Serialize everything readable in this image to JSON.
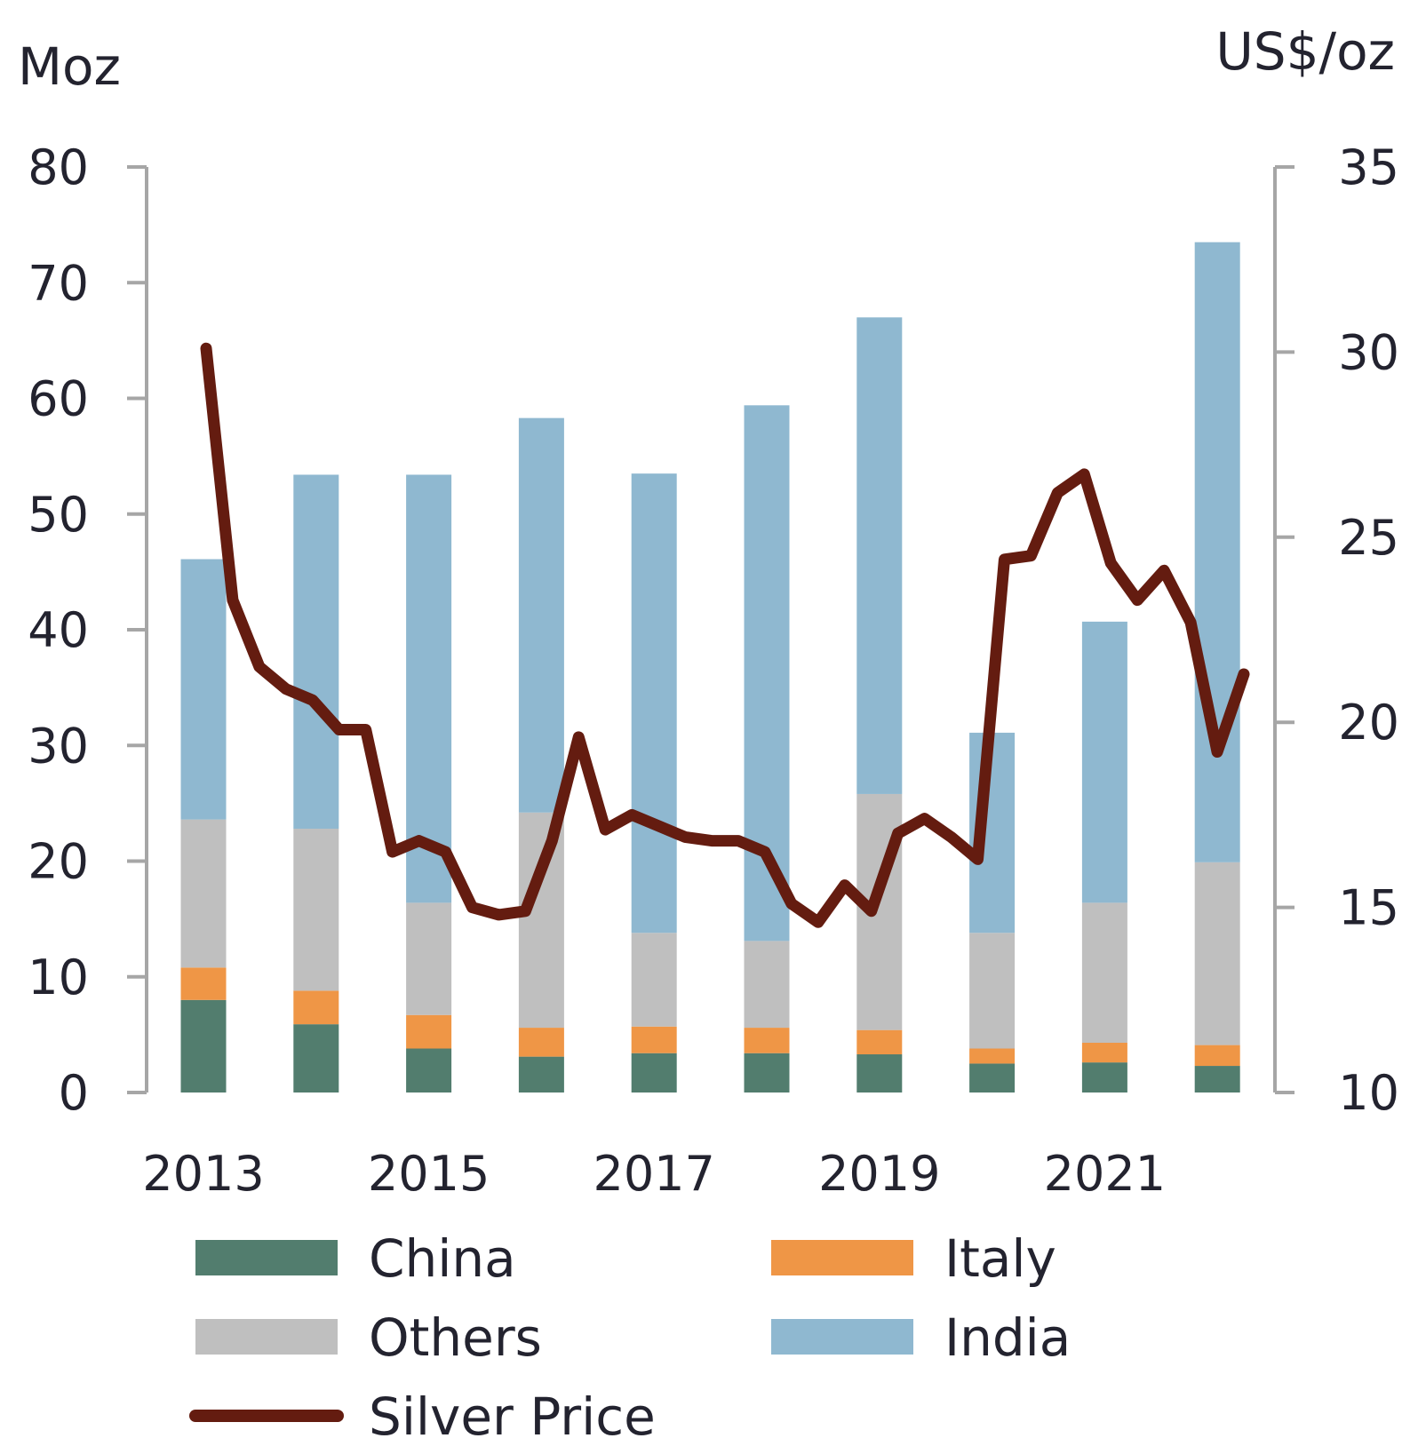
{
  "chart_data": {
    "type": "bar",
    "stacked": true,
    "categories": [
      "2013",
      "2014",
      "2015",
      "2016",
      "2017",
      "2018",
      "2019",
      "2020",
      "2021",
      "2022"
    ],
    "x_tick_labels": [
      "2013",
      "2015",
      "2017",
      "2019",
      "2021"
    ],
    "ylabel_left": "Moz",
    "ylabel_right": "US$/oz",
    "ylim_left": [
      0,
      80
    ],
    "yticks_left": [
      0,
      10,
      20,
      30,
      40,
      50,
      60,
      70,
      80
    ],
    "ylim_right": [
      10,
      35
    ],
    "yticks_right": [
      10,
      15,
      20,
      25,
      30,
      35
    ],
    "grid": false,
    "legend_placement": "bottom",
    "series": [
      {
        "name": "China",
        "color": "#527d6e",
        "values": [
          8.0,
          5.9,
          3.8,
          3.1,
          3.4,
          3.4,
          3.3,
          2.5,
          2.6,
          2.3
        ]
      },
      {
        "name": "Italy",
        "color": "#ef9646",
        "values": [
          2.8,
          2.9,
          2.9,
          2.5,
          2.3,
          2.2,
          2.1,
          1.3,
          1.7,
          1.8
        ]
      },
      {
        "name": "Others",
        "color": "#bfbfbf",
        "values": [
          12.8,
          14.0,
          9.7,
          18.6,
          8.1,
          7.5,
          20.4,
          10.0,
          12.1,
          15.8
        ]
      },
      {
        "name": "India",
        "color": "#8fb8d0",
        "values": [
          22.5,
          30.6,
          37.0,
          34.1,
          39.7,
          46.3,
          41.2,
          17.3,
          24.3,
          53.6
        ]
      }
    ],
    "line_series": {
      "name": "Silver Price",
      "color": "#641c10",
      "axis": "right",
      "x": [
        "2013Q1",
        "2013Q2",
        "2013Q3",
        "2013Q4",
        "2014Q1",
        "2014Q2",
        "2014Q3",
        "2014Q4",
        "2015Q1",
        "2015Q2",
        "2015Q3",
        "2015Q4",
        "2016Q1",
        "2016Q2",
        "2016Q3",
        "2016Q4",
        "2017Q1",
        "2017Q2",
        "2017Q3",
        "2017Q4",
        "2018Q1",
        "2018Q2",
        "2018Q3",
        "2018Q4",
        "2019Q1",
        "2019Q2",
        "2019Q3",
        "2019Q4",
        "2020Q1",
        "2020Q2",
        "2020Q3",
        "2020Q4",
        "2021Q1",
        "2021Q2",
        "2021Q3",
        "2021Q4",
        "2022Q1",
        "2022Q2",
        "2022Q3",
        "2022Q4"
      ],
      "values": [
        30.1,
        23.3,
        21.5,
        20.9,
        20.6,
        19.8,
        19.8,
        16.5,
        16.8,
        16.5,
        15.0,
        14.8,
        14.9,
        16.8,
        19.6,
        17.1,
        17.5,
        17.2,
        16.9,
        16.8,
        16.8,
        16.5,
        15.1,
        14.6,
        15.6,
        14.9,
        17.0,
        17.4,
        16.9,
        16.3,
        24.4,
        24.5,
        26.2,
        26.7,
        24.3,
        23.3,
        24.1,
        22.7,
        19.2,
        21.3
      ]
    },
    "legend": [
      "China",
      "Italy",
      "Others",
      "India",
      "Silver Price"
    ]
  }
}
